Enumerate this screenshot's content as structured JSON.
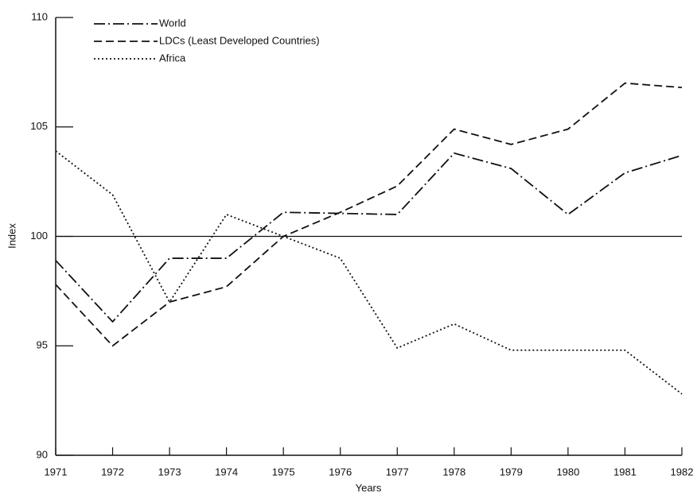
{
  "chart_data": {
    "type": "line",
    "xlabel": "Years",
    "ylabel": "Index",
    "x": [
      1971,
      1972,
      1973,
      1974,
      1975,
      1976,
      1977,
      1978,
      1979,
      1980,
      1981,
      1982
    ],
    "series": [
      {
        "name": "World",
        "color": "#111111",
        "dash": "14 4 2 4",
        "values": [
          98.9,
          96.1,
          99,
          99,
          101.1,
          101.05,
          101,
          103.8,
          103.1,
          101,
          102.9,
          103.7
        ]
      },
      {
        "name": "LDCs (Least Developed Countries)",
        "color": "#111111",
        "dash": "10 5",
        "values": [
          97.8,
          95,
          97,
          97.7,
          100,
          101.1,
          102.3,
          104.9,
          104.2,
          104.9,
          107,
          106.8
        ]
      },
      {
        "name": "Africa",
        "color": "#111111",
        "dash": "2 3",
        "values": [
          103.9,
          101.9,
          97,
          101,
          100,
          99,
          94.9,
          96,
          94.8,
          94.8,
          94.8,
          92.8
        ]
      }
    ],
    "reference_line": 100,
    "xlim": [
      1971,
      1982
    ],
    "xticks": [
      1971,
      1972,
      1973,
      1974,
      1975,
      1976,
      1977,
      1978,
      1979,
      1980,
      1981,
      1982
    ],
    "ylim": [
      90,
      110
    ],
    "yticks": [
      90,
      95,
      100,
      105,
      110
    ],
    "legend": "upper left"
  }
}
